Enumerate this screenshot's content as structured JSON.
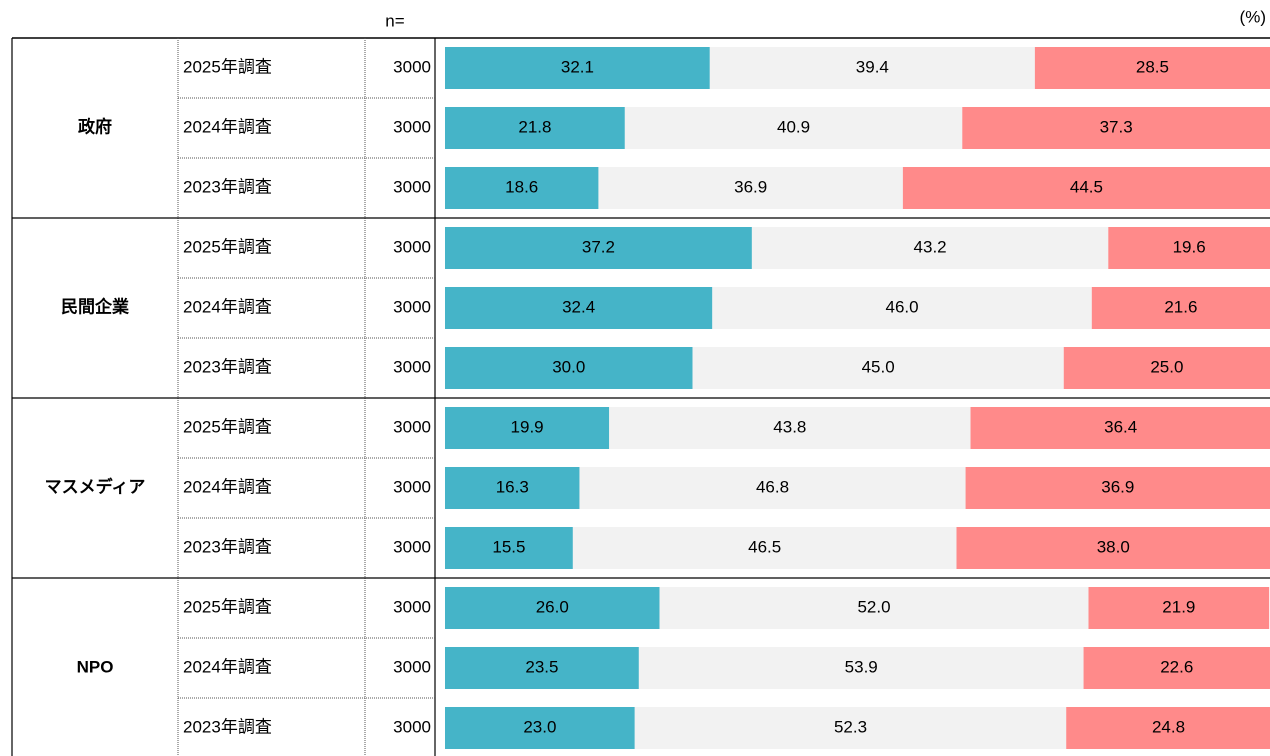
{
  "chart_data": {
    "type": "bar",
    "orientation": "horizontal",
    "stacked": true,
    "unit_label": "(%)",
    "n_label": "n=",
    "group_labels": [
      "政府",
      "民間企業",
      "マスメディア",
      "NPO"
    ],
    "categories": [
      "2025年調査",
      "2024年調査",
      "2023年調査",
      "2025年調査",
      "2024年調査",
      "2023年調査",
      "2025年調査",
      "2024年調査",
      "2023年調査",
      "2025年調査",
      "2024年調査",
      "2023年調査"
    ],
    "n": [
      3000,
      3000,
      3000,
      3000,
      3000,
      3000,
      3000,
      3000,
      3000,
      3000,
      3000,
      3000
    ],
    "xlim": [
      0,
      100
    ],
    "series": [
      {
        "color": "#45b4c8",
        "label_color": "#ffffff",
        "values": [
          32.1,
          21.8,
          18.6,
          37.2,
          32.4,
          30.0,
          19.9,
          16.3,
          15.5,
          26.0,
          23.5,
          23.0
        ],
        "value_labels": [
          "32.1",
          "21.8",
          "18.6",
          "37.2",
          "32.4",
          "30.0",
          "19.9",
          "16.3",
          "15.5",
          "26.0",
          "23.5",
          "23.0"
        ]
      },
      {
        "color": "#f2f2f2",
        "label_color": "#000000",
        "values": [
          39.4,
          40.9,
          36.9,
          43.2,
          46.0,
          45.0,
          43.8,
          46.8,
          46.5,
          52.0,
          53.9,
          52.3
        ],
        "value_labels": [
          "39.4",
          "40.9",
          "36.9",
          "43.2",
          "46.0",
          "45.0",
          "43.8",
          "46.8",
          "46.5",
          "52.0",
          "53.9",
          "52.3"
        ]
      },
      {
        "color": "#ff8a8a",
        "label_color": "#ffffff",
        "values": [
          28.5,
          37.3,
          44.5,
          19.6,
          21.6,
          25.0,
          36.4,
          36.9,
          38.0,
          21.9,
          22.6,
          24.8
        ],
        "value_labels": [
          "28.5",
          "37.3",
          "44.5",
          "19.6",
          "21.6",
          "25.0",
          "36.4",
          "36.9",
          "38.0",
          "21.9",
          "22.6",
          "24.8"
        ]
      }
    ]
  }
}
